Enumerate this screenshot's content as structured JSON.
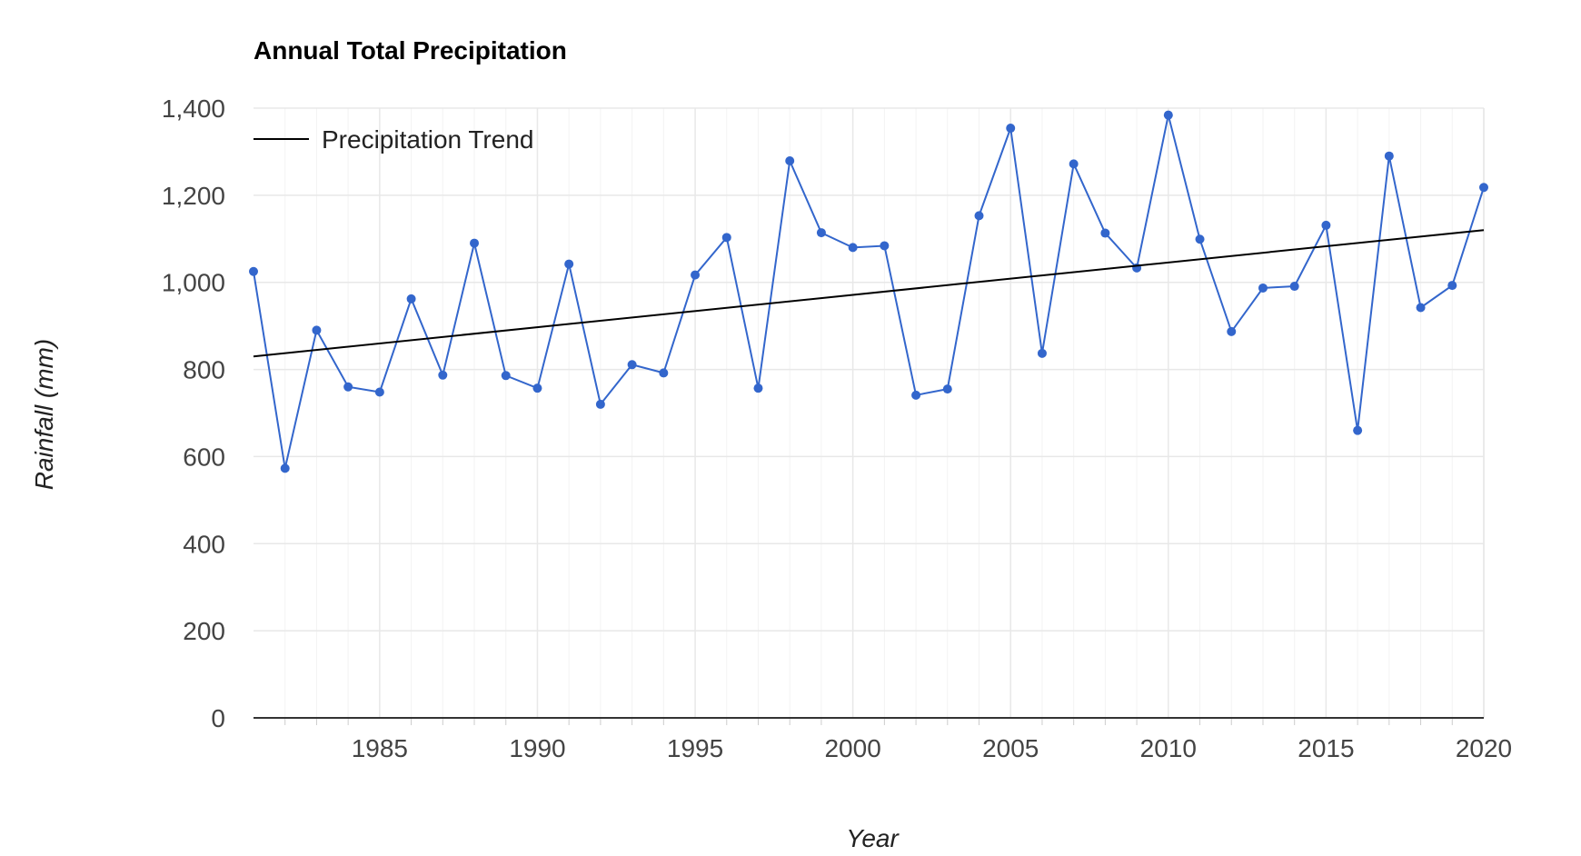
{
  "chart_data": {
    "type": "line",
    "title": "Annual Total Precipitation",
    "xlabel": "Year",
    "ylabel": "Rainfall (mm)",
    "xlim": [
      1981,
      2020
    ],
    "ylim": [
      0,
      1400
    ],
    "x_ticks": [
      1985,
      1990,
      1995,
      2000,
      2005,
      2010,
      2015,
      2020
    ],
    "y_ticks": [
      0,
      200,
      400,
      600,
      800,
      1000,
      1200,
      1400
    ],
    "y_tick_labels": [
      "0",
      "200",
      "400",
      "600",
      "800",
      "1,000",
      "1,200",
      "1,400"
    ],
    "grid": true,
    "legend_position": "top-left",
    "legend": [
      "Precipitation Trend"
    ],
    "x": [
      1981,
      1982,
      1983,
      1984,
      1985,
      1986,
      1987,
      1988,
      1989,
      1990,
      1991,
      1992,
      1993,
      1994,
      1995,
      1996,
      1997,
      1998,
      1999,
      2000,
      2001,
      2002,
      2003,
      2004,
      2005,
      2006,
      2007,
      2008,
      2009,
      2010,
      2011,
      2012,
      2013,
      2014,
      2015,
      2016,
      2017,
      2018,
      2019,
      2020
    ],
    "series": [
      {
        "color": "#3366cc",
        "values": [
          1025,
          573,
          890,
          760,
          748,
          962,
          787,
          1090,
          786,
          757,
          1042,
          720,
          811,
          792,
          1017,
          1103,
          757,
          1279,
          1114,
          1080,
          1084,
          741,
          755,
          1153,
          1354,
          837,
          1272,
          1113,
          1033,
          1384,
          1099,
          887,
          987,
          991,
          1131,
          660,
          1290,
          942,
          993,
          1218
        ]
      },
      {
        "name": "Precipitation Trend",
        "color": "#000000",
        "x": [
          1981,
          2020
        ],
        "values": [
          830,
          1120
        ]
      }
    ]
  }
}
